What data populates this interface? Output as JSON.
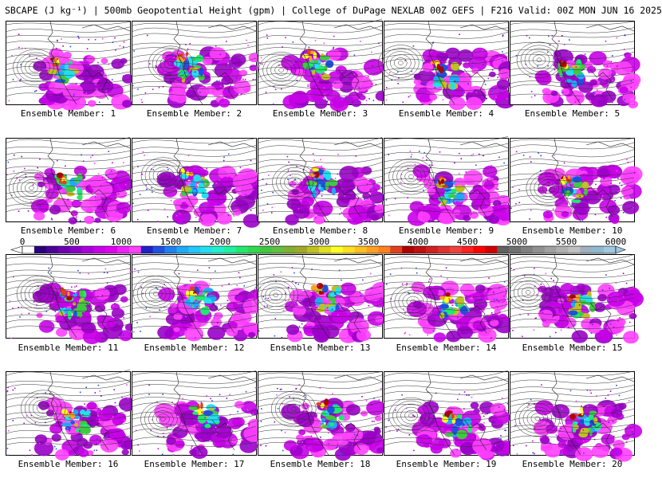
{
  "header": {
    "title": "SBCAPE (J kg⁻¹) | 500mb Geopotential Height (gpm) | College of DuPage NEXLAB 00Z GEFS | F216 Valid: 00Z MON JUN 16 2025"
  },
  "members": [
    {
      "caption": "Ensemble Member: 1"
    },
    {
      "caption": "Ensemble Member: 2"
    },
    {
      "caption": "Ensemble Member: 3"
    },
    {
      "caption": "Ensemble Member: 4"
    },
    {
      "caption": "Ensemble Member: 5"
    },
    {
      "caption": "Ensemble Member: 6"
    },
    {
      "caption": "Ensemble Member: 7"
    },
    {
      "caption": "Ensemble Member: 8"
    },
    {
      "caption": "Ensemble Member: 9"
    },
    {
      "caption": "Ensemble Member: 10"
    },
    {
      "caption": "Ensemble Member: 11"
    },
    {
      "caption": "Ensemble Member: 12"
    },
    {
      "caption": "Ensemble Member: 13"
    },
    {
      "caption": "Ensemble Member: 14"
    },
    {
      "caption": "Ensemble Member: 15"
    },
    {
      "caption": "Ensemble Member: 16"
    },
    {
      "caption": "Ensemble Member: 17"
    },
    {
      "caption": "Ensemble Member: 18"
    },
    {
      "caption": "Ensemble Member: 19"
    },
    {
      "caption": "Ensemble Member: 20"
    }
  ],
  "colorbar": {
    "labels": [
      "0",
      "500",
      "1000",
      "1500",
      "2000",
      "2500",
      "3000",
      "3500",
      "4000",
      "4500",
      "5000",
      "5500",
      "6000"
    ],
    "min": 0,
    "max": 6000,
    "colors": [
      "#ffffff",
      "#2a007a",
      "#4b0096",
      "#6a00b0",
      "#8a00c8",
      "#a800dc",
      "#c800e8",
      "#e000f0",
      "#f020f8",
      "#ff40ff",
      "#2020c8",
      "#2050e0",
      "#2080f0",
      "#20a8f8",
      "#20c8ff",
      "#20e0f0",
      "#20f0d0",
      "#20f0a0",
      "#20e870",
      "#30d850",
      "#40c840",
      "#60c040",
      "#80b030",
      "#a0a828",
      "#c0c020",
      "#e0e020",
      "#ffff20",
      "#ffe020",
      "#ffc020",
      "#ffa020",
      "#ff8020",
      "#e04020",
      "#b00000",
      "#c01010",
      "#d02020",
      "#e03030",
      "#f04040",
      "#ff2020",
      "#ff0000",
      "#d00000",
      "#606060",
      "#707070",
      "#808080",
      "#909090",
      "#a0a0a0",
      "#b0b0b0",
      "#c0c0c0",
      "#a0b0c0",
      "#90b8d0",
      "#a0c8e0"
    ]
  }
}
